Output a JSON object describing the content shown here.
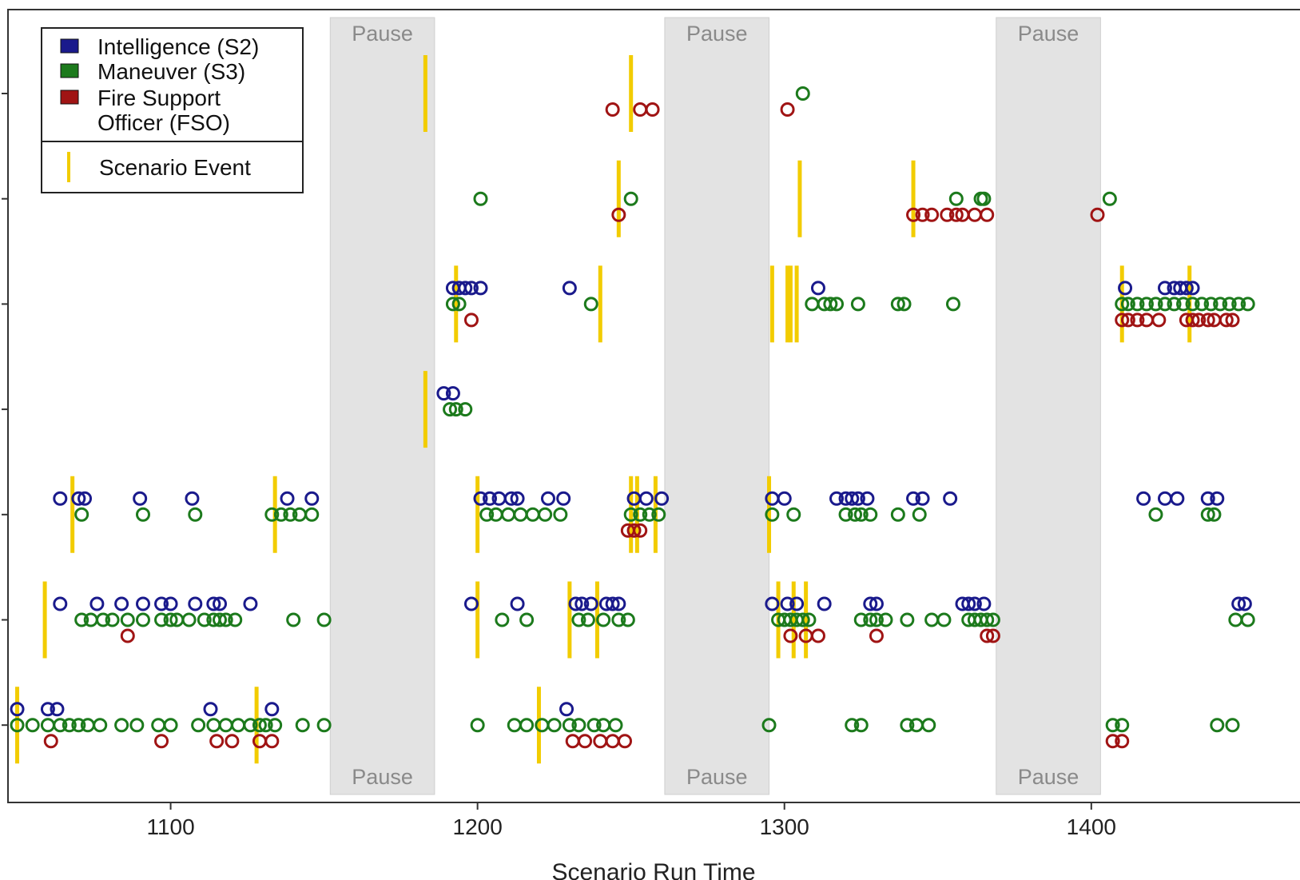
{
  "chart_data": {
    "type": "scatter",
    "xlabel": "Scenario Run Time",
    "xlim": [
      1047,
      1468
    ],
    "x_ticks": [
      1100,
      1200,
      1300,
      1400
    ],
    "y_rows": 7,
    "colors": {
      "Intelligence (S2)": "#1a1a8c",
      "Maneuver (S3)": "#1c7a1c",
      "Fire Support Officer (FSO)": "#a01414",
      "Scenario Event": "#f2cc00",
      "pause": "#e3e3e3"
    },
    "legend": {
      "position": "top-left",
      "entries": [
        {
          "label": "Intelligence (S2)",
          "color": "#1a1a8c"
        },
        {
          "label": "Maneuver (S3)",
          "color": "#1c7a1c"
        },
        {
          "label": "Fire Support\nOfficer (FSO)",
          "lines": [
            "Fire Support",
            "Officer (FSO)"
          ],
          "color": "#a01414"
        }
      ],
      "event_label": "Scenario Event"
    },
    "pauses": [
      {
        "start": 1152,
        "end": 1186,
        "label": "Pause"
      },
      {
        "start": 1261,
        "end": 1295,
        "label": "Pause"
      },
      {
        "start": 1369,
        "end": 1403,
        "label": "Pause"
      }
    ],
    "rows": [
      {
        "row": 7,
        "events": [
          1183,
          1250
        ],
        "series": [
          {
            "name": "Intelligence (S2)",
            "x": []
          },
          {
            "name": "Maneuver (S3)",
            "x": [
              1306
            ]
          },
          {
            "name": "Fire Support Officer (FSO)",
            "x": [
              1244,
              1253,
              1257,
              1301
            ]
          }
        ]
      },
      {
        "row": 6,
        "events": [
          1246,
          1305,
          1342
        ],
        "series": [
          {
            "name": "Intelligence (S2)",
            "x": []
          },
          {
            "name": "Maneuver (S3)",
            "x": [
              1201,
              1250,
              1356,
              1364,
              1365,
              1406
            ]
          },
          {
            "name": "Fire Support Officer (FSO)",
            "x": [
              1246,
              1342,
              1345,
              1348,
              1353,
              1356,
              1358,
              1362,
              1366,
              1402
            ]
          }
        ]
      },
      {
        "row": 5,
        "events": [
          1193,
          1240,
          1296,
          1301,
          1302,
          1304,
          1410,
          1432
        ],
        "series": [
          {
            "name": "Intelligence (S2)",
            "x": [
              1192,
              1194,
              1196,
              1198,
              1201,
              1230,
              1311,
              1411,
              1424,
              1427,
              1429,
              1431,
              1433
            ]
          },
          {
            "name": "Maneuver (S3)",
            "x": [
              1192,
              1194,
              1237,
              1309,
              1313,
              1315,
              1317,
              1324,
              1337,
              1339,
              1355,
              1410,
              1412,
              1415,
              1418,
              1421,
              1424,
              1427,
              1430,
              1433,
              1436,
              1439,
              1442,
              1445,
              1448,
              1451
            ]
          },
          {
            "name": "Fire Support Officer (FSO)",
            "x": [
              1198,
              1410,
              1412,
              1415,
              1418,
              1422,
              1431,
              1433,
              1435,
              1438,
              1440,
              1444,
              1446
            ]
          }
        ]
      },
      {
        "row": 4,
        "events": [
          1183
        ],
        "series": [
          {
            "name": "Intelligence (S2)",
            "x": [
              1189,
              1192
            ]
          },
          {
            "name": "Maneuver (S3)",
            "x": [
              1191,
              1193,
              1196
            ]
          },
          {
            "name": "Fire Support Officer (FSO)",
            "x": []
          }
        ]
      },
      {
        "row": 3,
        "events": [
          1068,
          1134,
          1200,
          1250,
          1252,
          1258,
          1295
        ],
        "series": [
          {
            "name": "Intelligence (S2)",
            "x": [
              1064,
              1070,
              1072,
              1090,
              1107,
              1138,
              1146,
              1201,
              1204,
              1207,
              1211,
              1213,
              1223,
              1228,
              1251,
              1255,
              1260,
              1296,
              1300,
              1317,
              1320,
              1322,
              1324,
              1327,
              1342,
              1345,
              1354,
              1417,
              1424,
              1428,
              1438,
              1441
            ]
          },
          {
            "name": "Maneuver (S3)",
            "x": [
              1071,
              1091,
              1108,
              1133,
              1136,
              1139,
              1142,
              1146,
              1203,
              1206,
              1210,
              1214,
              1218,
              1222,
              1227,
              1250,
              1253,
              1256,
              1259,
              1296,
              1303,
              1320,
              1323,
              1325,
              1328,
              1337,
              1344,
              1421,
              1438,
              1440
            ]
          },
          {
            "name": "Fire Support Officer (FSO)",
            "x": [
              1249,
              1251,
              1253
            ]
          }
        ]
      },
      {
        "row": 2,
        "events": [
          1059,
          1200,
          1230,
          1239,
          1298,
          1303,
          1307
        ],
        "series": [
          {
            "name": "Intelligence (S2)",
            "x": [
              1064,
              1076,
              1084,
              1091,
              1097,
              1100,
              1108,
              1114,
              1116,
              1126,
              1198,
              1213,
              1232,
              1234,
              1237,
              1242,
              1244,
              1246,
              1296,
              1301,
              1304,
              1313,
              1328,
              1330,
              1358,
              1360,
              1362,
              1365,
              1448,
              1450
            ]
          },
          {
            "name": "Maneuver (S3)",
            "x": [
              1071,
              1074,
              1078,
              1081,
              1086,
              1091,
              1097,
              1100,
              1102,
              1106,
              1111,
              1114,
              1116,
              1118,
              1121,
              1140,
              1150,
              1208,
              1216,
              1233,
              1236,
              1241,
              1246,
              1249,
              1298,
              1300,
              1302,
              1304,
              1306,
              1308,
              1325,
              1328,
              1330,
              1333,
              1340,
              1348,
              1352,
              1360,
              1362,
              1364,
              1366,
              1368,
              1447,
              1451
            ]
          },
          {
            "name": "Fire Support Officer (FSO)",
            "x": [
              1086,
              1302,
              1307,
              1311,
              1330,
              1366,
              1368
            ]
          }
        ]
      },
      {
        "row": 1,
        "events": [
          1050,
          1128,
          1220
        ],
        "series": [
          {
            "name": "Intelligence (S2)",
            "x": [
              1050,
              1060,
              1063,
              1113,
              1133,
              1229
            ]
          },
          {
            "name": "Maneuver (S3)",
            "x": [
              1050,
              1055,
              1060,
              1064,
              1067,
              1070,
              1073,
              1077,
              1084,
              1089,
              1096,
              1100,
              1109,
              1114,
              1118,
              1122,
              1126,
              1129,
              1131,
              1134,
              1143,
              1150,
              1200,
              1212,
              1216,
              1221,
              1225,
              1230,
              1233,
              1238,
              1241,
              1245,
              1295,
              1322,
              1325,
              1340,
              1343,
              1347,
              1407,
              1410,
              1441,
              1446
            ]
          },
          {
            "name": "Fire Support Officer (FSO)",
            "x": [
              1061,
              1097,
              1115,
              1120,
              1129,
              1133,
              1231,
              1235,
              1240,
              1244,
              1248,
              1407,
              1410
            ]
          }
        ]
      }
    ]
  }
}
